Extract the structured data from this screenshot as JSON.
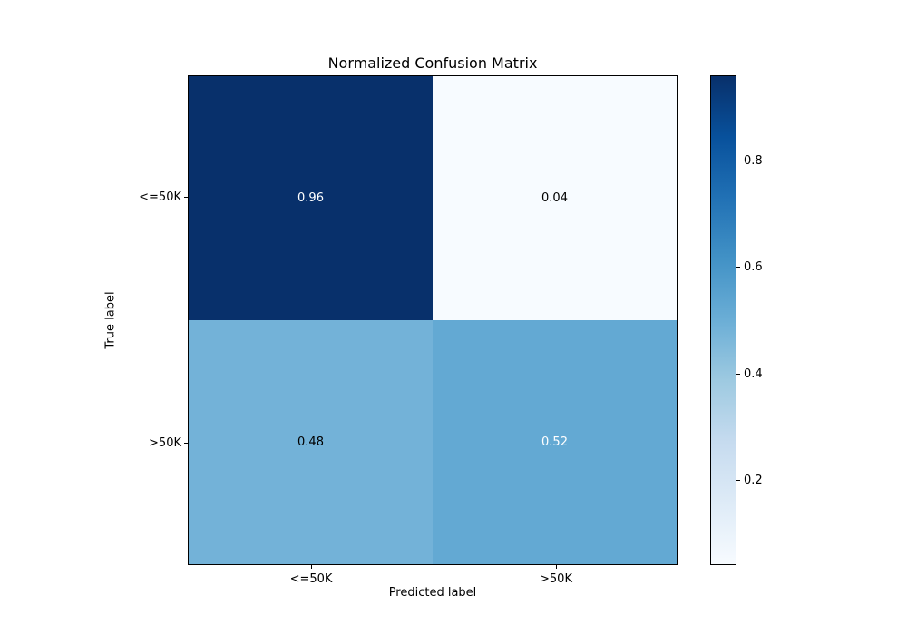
{
  "figure": {
    "background": "#ffffff"
  },
  "chart_data": {
    "type": "heatmap",
    "title": "Normalized Confusion Matrix",
    "xlabel": "Predicted label",
    "ylabel": "True label",
    "x_categories": [
      "<=50K",
      ">50K"
    ],
    "y_categories": [
      "<=50K",
      ">50K"
    ],
    "matrix": [
      [
        0.96,
        0.04
      ],
      [
        0.48,
        0.52
      ]
    ],
    "cells": [
      {
        "row": 0,
        "col": 0,
        "label": "0.96",
        "bg": "#08306b",
        "fg": "#ffffff"
      },
      {
        "row": 0,
        "col": 1,
        "label": "0.04",
        "bg": "#f7fbff",
        "fg": "#000000"
      },
      {
        "row": 1,
        "col": 0,
        "label": "0.48",
        "bg": "#73b2d8",
        "fg": "#000000"
      },
      {
        "row": 1,
        "col": 1,
        "label": "0.52",
        "bg": "#63a9d3",
        "fg": "#ffffff"
      }
    ],
    "colormap": "Blues",
    "vmin": 0.04,
    "vmax": 0.96,
    "grid": false,
    "legend_position": "right-colorbar",
    "colorbar": {
      "tick_labels": [
        "0.8",
        "0.6",
        "0.4",
        "0.2"
      ],
      "tick_values": [
        0.8,
        0.6,
        0.4,
        0.2
      ],
      "gradient_stops_bottom_to_top": [
        "#f7fbff",
        "#deebf7",
        "#c6dbef",
        "#9ecae1",
        "#6baed6",
        "#4292c6",
        "#2171b5",
        "#08519c",
        "#08306b"
      ]
    }
  }
}
